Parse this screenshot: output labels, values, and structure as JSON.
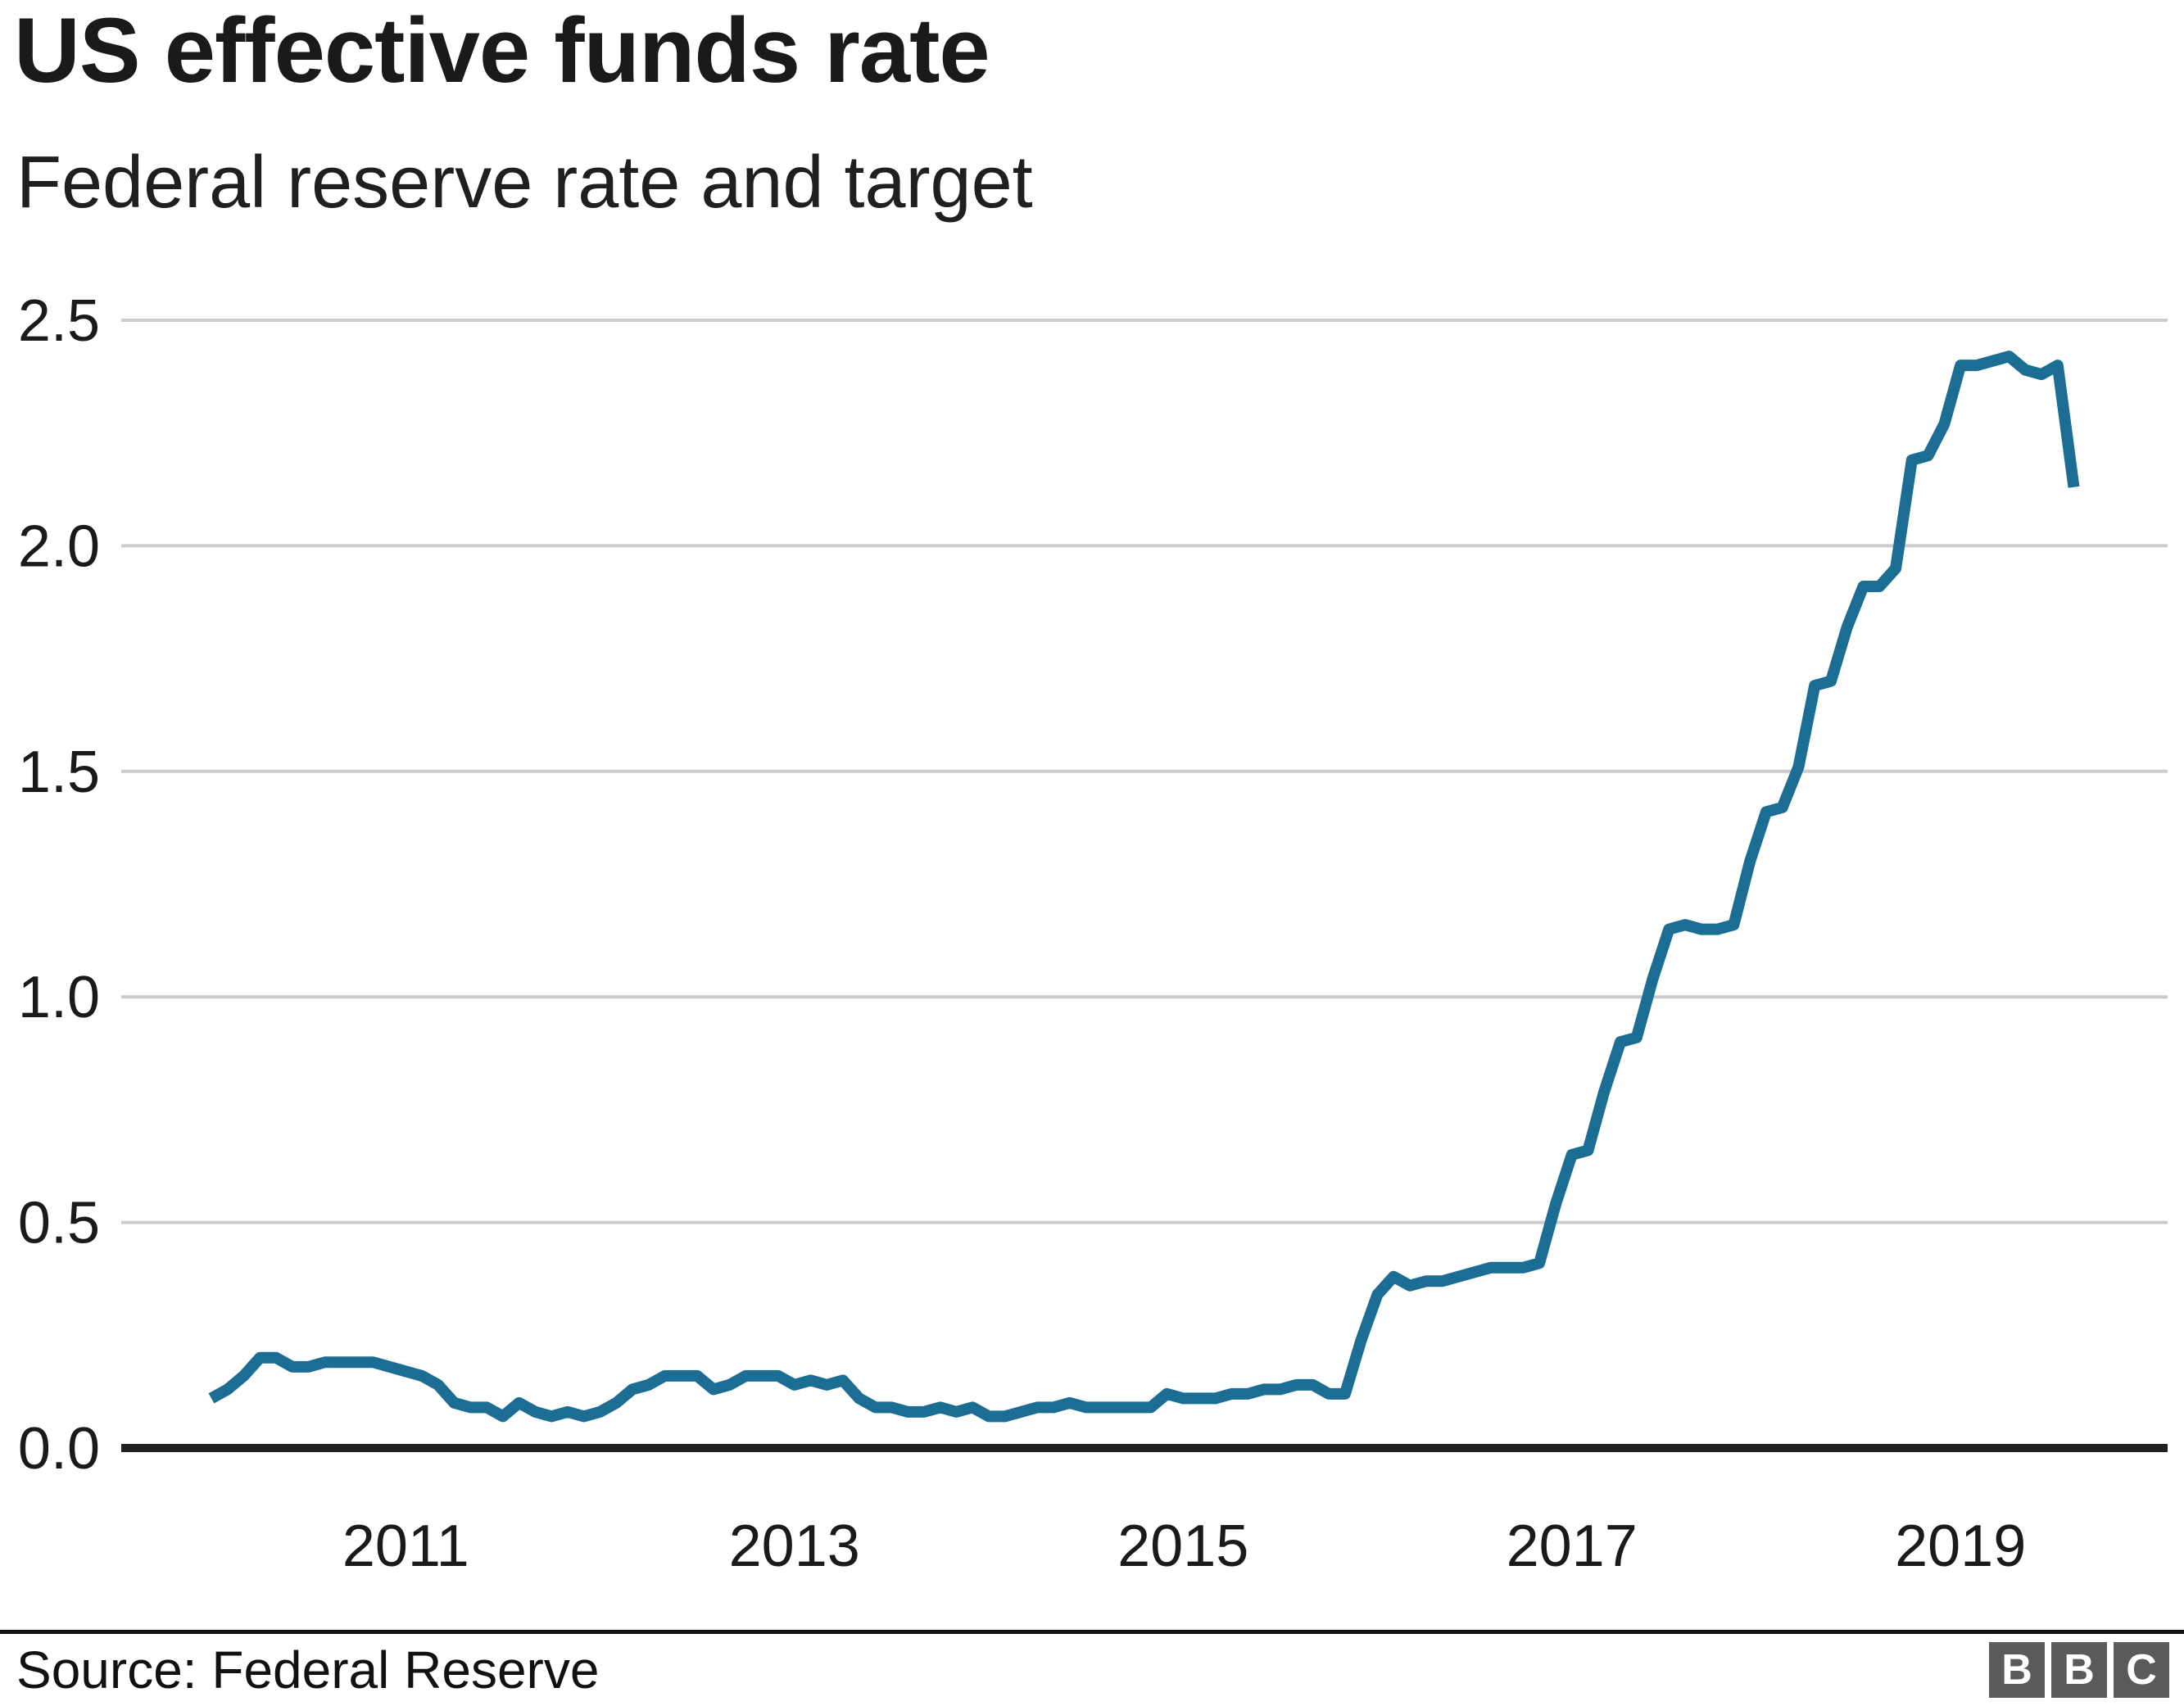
{
  "header": {
    "title": "US effective funds rate",
    "subtitle": "Federal reserve rate and target"
  },
  "footer": {
    "source": "Source: Federal Reserve",
    "logo_letters": [
      "B",
      "B",
      "C"
    ]
  },
  "colors": {
    "line": "#1b6d93",
    "grid": "#cccccc",
    "axis": "#202020",
    "divider": "#111111",
    "text": "#1a1a1a",
    "logo_bg": "#5a5a5a"
  },
  "chart_data": {
    "type": "line",
    "title": "US effective funds rate",
    "subtitle": "Federal reserve rate and target",
    "unit": "percent",
    "grid": "horizontal gridlines on",
    "legend": "none",
    "ylim": [
      0,
      2.5
    ],
    "x_range": {
      "start_year": 2010,
      "start_month": 1,
      "end_year": 2019,
      "end_month": 8
    },
    "y_ticks": [
      {
        "value": 0.0,
        "label": "0.0"
      },
      {
        "value": 0.5,
        "label": "0.5"
      },
      {
        "value": 1.0,
        "label": "1.0"
      },
      {
        "value": 1.5,
        "label": "1.5"
      },
      {
        "value": 2.0,
        "label": "2.0"
      },
      {
        "value": 2.5,
        "label": "2.5"
      }
    ],
    "x_ticks": [
      {
        "label": "2011",
        "month_index": 12
      },
      {
        "label": "2013",
        "month_index": 36
      },
      {
        "label": "2015",
        "month_index": 60
      },
      {
        "label": "2017",
        "month_index": 84
      },
      {
        "label": "2019",
        "month_index": 108
      }
    ],
    "series": [
      {
        "name": "Effective federal funds rate",
        "color": "#1b6d93",
        "start": "2010-01",
        "frequency": "monthly",
        "values": [
          0.11,
          0.13,
          0.16,
          0.2,
          0.2,
          0.18,
          0.18,
          0.19,
          0.19,
          0.19,
          0.19,
          0.18,
          0.17,
          0.16,
          0.14,
          0.1,
          0.09,
          0.09,
          0.07,
          0.1,
          0.08,
          0.07,
          0.08,
          0.07,
          0.08,
          0.1,
          0.13,
          0.14,
          0.16,
          0.16,
          0.16,
          0.13,
          0.14,
          0.16,
          0.16,
          0.16,
          0.14,
          0.15,
          0.14,
          0.15,
          0.11,
          0.09,
          0.09,
          0.08,
          0.08,
          0.09,
          0.08,
          0.09,
          0.07,
          0.07,
          0.08,
          0.09,
          0.09,
          0.1,
          0.09,
          0.09,
          0.09,
          0.09,
          0.09,
          0.12,
          0.11,
          0.11,
          0.11,
          0.12,
          0.12,
          0.13,
          0.13,
          0.14,
          0.14,
          0.12,
          0.12,
          0.24,
          0.34,
          0.38,
          0.36,
          0.37,
          0.37,
          0.38,
          0.39,
          0.4,
          0.4,
          0.4,
          0.41,
          0.54,
          0.65,
          0.66,
          0.79,
          0.9,
          0.91,
          1.04,
          1.15,
          1.16,
          1.15,
          1.15,
          1.16,
          1.3,
          1.41,
          1.42,
          1.51,
          1.69,
          1.7,
          1.82,
          1.91,
          1.91,
          1.95,
          2.19,
          2.2,
          2.27,
          2.4,
          2.4,
          2.41,
          2.42,
          2.39,
          2.38,
          2.4,
          2.13
        ]
      }
    ]
  }
}
